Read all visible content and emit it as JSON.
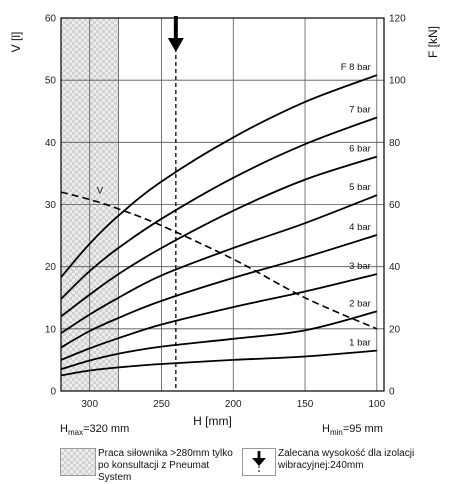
{
  "chart_data": {
    "type": "line",
    "title": "",
    "xlabel": "H [mm]",
    "ylabel_left": "V [l]",
    "ylabel_right": "F [kN]",
    "x_reversed": true,
    "xlim": [
      320,
      95
    ],
    "x_ticks": [
      300,
      250,
      200,
      150,
      100
    ],
    "ylim_left": [
      0,
      60
    ],
    "y_ticks_left": [
      0,
      10,
      20,
      30,
      40,
      50,
      60
    ],
    "ylim_right": [
      0,
      120
    ],
    "y_ticks_right": [
      0,
      20,
      40,
      60,
      80,
      100,
      120
    ],
    "grid": true,
    "x": [
      320,
      300,
      280,
      250,
      200,
      150,
      100
    ],
    "series": [
      {
        "name": "1 bar",
        "axis": "F",
        "values": [
          5.0,
          6.6,
          7.6,
          8.7,
          10.0,
          11.1,
          13.0
        ]
      },
      {
        "name": "2 bar",
        "axis": "F",
        "values": [
          7.0,
          9.8,
          12.0,
          14.3,
          16.8,
          19.5,
          25.6
        ]
      },
      {
        "name": "3 bar",
        "axis": "F",
        "values": [
          10.0,
          13.7,
          17.0,
          21.4,
          27.0,
          32.0,
          37.6
        ]
      },
      {
        "name": "4 bar",
        "axis": "F",
        "values": [
          14.0,
          19.3,
          23.5,
          29.0,
          36.4,
          43.0,
          50.2
        ]
      },
      {
        "name": "5 bar",
        "axis": "F",
        "values": [
          18.6,
          24.6,
          30.0,
          37.2,
          46.0,
          54.0,
          63.0
        ]
      },
      {
        "name": "6 bar",
        "axis": "F",
        "values": [
          24.0,
          31.0,
          37.6,
          46.0,
          58.0,
          68.0,
          75.4
        ]
      },
      {
        "name": "7 bar",
        "axis": "F",
        "values": [
          29.6,
          38.6,
          46.0,
          55.4,
          68.6,
          79.4,
          88.0
        ]
      },
      {
        "name": "F 8 bar",
        "axis": "F",
        "values": [
          36.6,
          47.4,
          56.4,
          67.4,
          81.6,
          93.0,
          101.6
        ]
      },
      {
        "name": "V",
        "axis": "V",
        "values": [
          32.0,
          30.8,
          29.3,
          26.6,
          21.2,
          15.0,
          10.0
        ]
      }
    ],
    "hatched_region": {
      "x_from": 320,
      "x_to": 280
    },
    "marker": {
      "x": 240
    }
  },
  "annotations": {
    "h_max_prefix": "H",
    "h_max_sub": "max",
    "h_max_suffix": "=320 mm",
    "h_min_prefix": "H",
    "h_min_sub": "min",
    "h_min_suffix": "=95 mm"
  },
  "legend": {
    "hatched_text": "Praca siłownika >280mm tylko po konsultacji z Pneumat System",
    "arrow_text": "Zalecana wysokość dla izolacji wibracyjnej:240mm"
  }
}
